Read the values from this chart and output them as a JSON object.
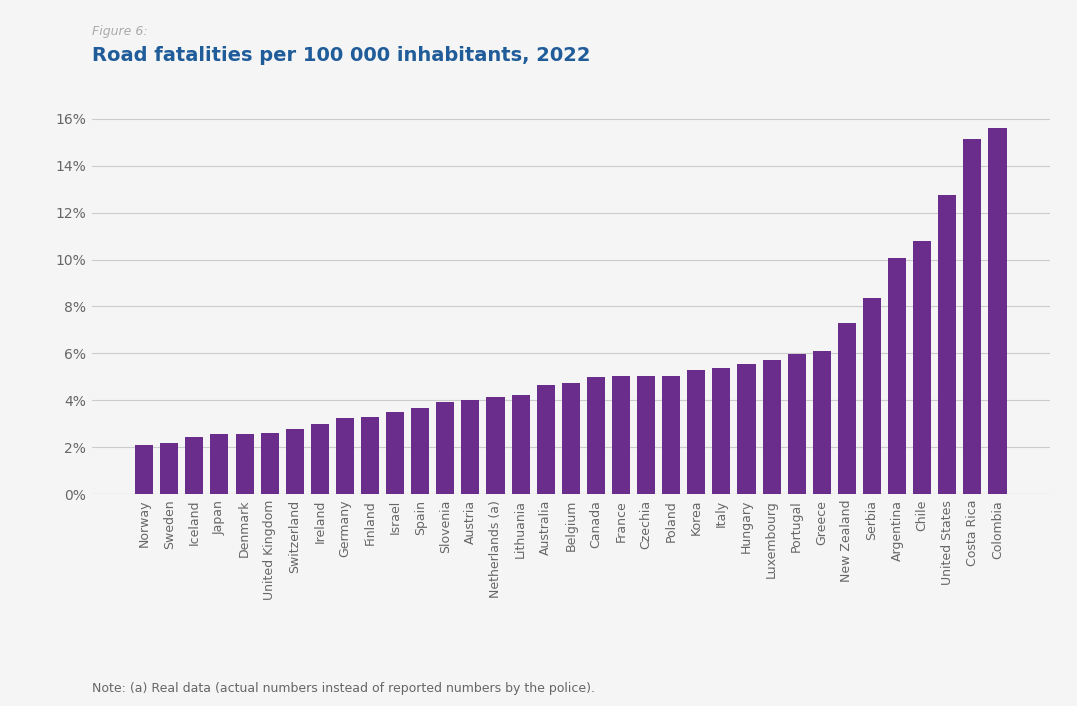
{
  "figure_label": "Figure 6:",
  "title": "Road fatalities per 100 000 inhabitants, 2022",
  "note": "Note: (a) Real data (actual numbers instead of reported numbers by the police).",
  "bar_color": "#6B2D8B",
  "background_color": "#f5f5f5",
  "categories": [
    "Norway",
    "Sweden",
    "Iceland",
    "Japan",
    "Denmark",
    "United Kingdom",
    "Switzerland",
    "Ireland",
    "Germany",
    "Finland",
    "Israel",
    "Spain",
    "Slovenia",
    "Austria",
    "Netherlands (a)",
    "Lithuania",
    "Australia",
    "Belgium",
    "Canada",
    "France",
    "Czechia",
    "Poland",
    "Korea",
    "Italy",
    "Hungary",
    "Luxembourg",
    "Portugal",
    "Greece",
    "New Zealand",
    "Serbia",
    "Argentina",
    "Chile",
    "United States",
    "Costa Rica",
    "Colombia"
  ],
  "values": [
    2.08,
    2.17,
    2.42,
    2.55,
    2.57,
    2.6,
    2.78,
    2.98,
    3.23,
    3.3,
    3.52,
    3.68,
    3.93,
    4.0,
    4.14,
    4.24,
    4.65,
    4.73,
    4.99,
    5.03,
    5.02,
    5.04,
    5.28,
    5.36,
    5.55,
    5.72,
    5.96,
    6.1,
    7.28,
    8.38,
    10.06,
    10.78,
    12.76,
    15.13,
    15.6
  ],
  "ylim_max": 17.0,
  "yticks": [
    0,
    2,
    4,
    6,
    8,
    10,
    12,
    14,
    16
  ],
  "ytick_labels": [
    "0%",
    "2%",
    "4%",
    "6%",
    "8%",
    "10%",
    "12%",
    "14%",
    "16%"
  ],
  "grid_color": "#cccccc",
  "title_color": "#1F5C99",
  "figure_label_color": "#aaaaaa",
  "note_color": "#666666",
  "title_fontsize": 14,
  "figure_label_fontsize": 9,
  "ytick_fontsize": 10,
  "xtick_fontsize": 9,
  "note_fontsize": 9
}
